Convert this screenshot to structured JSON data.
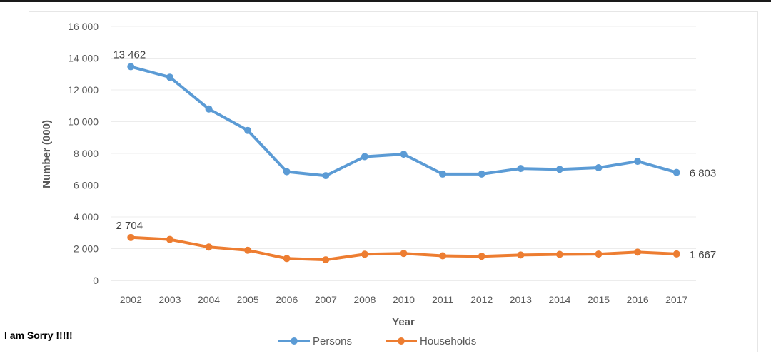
{
  "caption": "I am Sorry !!!!!",
  "chart_data": {
    "type": "line",
    "title": "",
    "xlabel": "Year",
    "ylabel": "Number (000)",
    "categories": [
      "2002",
      "2003",
      "2004",
      "2005",
      "2006",
      "2007",
      "2008",
      "2010",
      "2011",
      "2012",
      "2013",
      "2014",
      "2015",
      "2016",
      "2017"
    ],
    "ylim": [
      0,
      16000
    ],
    "yticks": [
      0,
      2000,
      4000,
      6000,
      8000,
      10000,
      12000,
      14000,
      16000
    ],
    "ytick_labels": [
      "0",
      "2 000",
      "4 000",
      "6 000",
      "8 000",
      "10 000",
      "12 000",
      "14 000",
      "16 000"
    ],
    "grid": true,
    "legend_position": "bottom",
    "series": [
      {
        "name": "Persons",
        "color": "#5b9bd5",
        "values": [
          13462,
          12800,
          10800,
          9450,
          6850,
          6600,
          7800,
          7950,
          6700,
          6700,
          7050,
          7000,
          7100,
          7500,
          6803
        ],
        "labels": [
          {
            "index": 0,
            "text": "13 462"
          },
          {
            "index": 14,
            "text": "6 803"
          }
        ]
      },
      {
        "name": "Households",
        "color": "#ed7d31",
        "values": [
          2704,
          2580,
          2100,
          1900,
          1380,
          1300,
          1650,
          1700,
          1550,
          1520,
          1600,
          1640,
          1660,
          1780,
          1667
        ],
        "labels": [
          {
            "index": 0,
            "text": "2 704"
          },
          {
            "index": 14,
            "text": "1 667"
          }
        ]
      }
    ]
  }
}
